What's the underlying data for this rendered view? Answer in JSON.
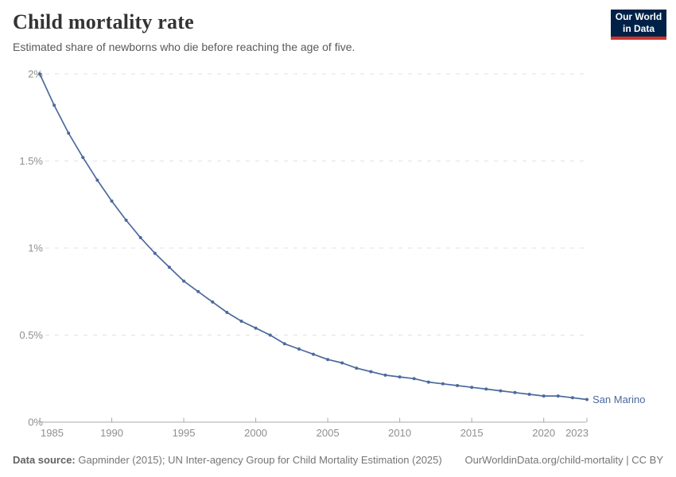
{
  "header": {
    "title": "Child mortality rate",
    "subtitle": "Estimated share of newborns who die before reaching the age of five."
  },
  "logo": {
    "line1": "Our World",
    "line2": "in Data",
    "background_color": "#002147",
    "stripe_color": "#d0342c"
  },
  "chart_data": {
    "type": "line",
    "title": "Child mortality rate",
    "xlabel": "",
    "ylabel": "",
    "unit": "%",
    "grid": true,
    "xlim": [
      1985,
      2023
    ],
    "ylim": [
      0,
      2
    ],
    "x_ticks": [
      1985,
      1990,
      1995,
      2000,
      2005,
      2010,
      2015,
      2020,
      2023
    ],
    "y_ticks": [
      0,
      0.5,
      1,
      1.5,
      2
    ],
    "y_tick_labels": [
      "0%",
      "0.5%",
      "1%",
      "1.5%",
      "2%"
    ],
    "legend_position": "end-of-line",
    "series": [
      {
        "name": "San Marino",
        "color": "#4c6a9c",
        "x": [
          1985,
          1986,
          1987,
          1988,
          1989,
          1990,
          1991,
          1992,
          1993,
          1994,
          1995,
          1996,
          1997,
          1998,
          1999,
          2000,
          2001,
          2002,
          2003,
          2004,
          2005,
          2006,
          2007,
          2008,
          2009,
          2010,
          2011,
          2012,
          2013,
          2014,
          2015,
          2016,
          2017,
          2018,
          2019,
          2020,
          2021,
          2022,
          2023
        ],
        "values": [
          2.0,
          1.82,
          1.66,
          1.52,
          1.39,
          1.27,
          1.16,
          1.06,
          0.97,
          0.89,
          0.81,
          0.75,
          0.69,
          0.63,
          0.58,
          0.54,
          0.5,
          0.45,
          0.42,
          0.39,
          0.36,
          0.34,
          0.31,
          0.29,
          0.27,
          0.26,
          0.25,
          0.23,
          0.22,
          0.21,
          0.2,
          0.19,
          0.18,
          0.17,
          0.16,
          0.15,
          0.15,
          0.14,
          0.13
        ]
      }
    ],
    "style": {
      "grid_color": "#e2e2e2",
      "axis_color": "#a8a8a8",
      "tick_label_color": "#8f8f8f"
    }
  },
  "footer": {
    "source_label": "Data source:",
    "source_text": " Gapminder (2015); UN Inter-agency Group for Child Mortality Estimation (2025)",
    "link_text": "OurWorldinData.org/child-mortality | CC BY"
  }
}
